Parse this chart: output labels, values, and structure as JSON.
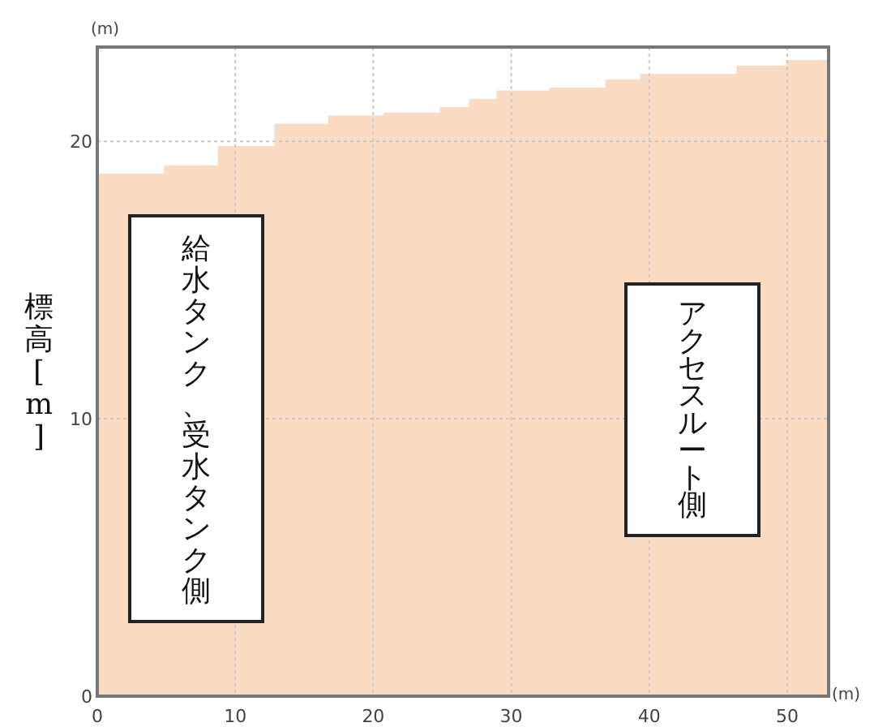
{
  "chart_data": {
    "type": "step",
    "xlabel": "(m)",
    "ylabel": "標高[m]",
    "x": [
      0,
      4.9,
      8.8,
      12.9,
      16.8,
      20.8,
      24.9,
      27.0,
      29.0,
      32.8,
      36.9,
      39.4,
      46.4,
      50.0,
      53
    ],
    "series": [
      {
        "color": "#fbdcc3",
        "values": [
          18.8,
          19.1,
          19.8,
          20.6,
          20.9,
          21.0,
          21.2,
          21.5,
          21.8,
          21.9,
          22.2,
          22.4,
          22.7,
          22.9,
          22.9
        ]
      }
    ],
    "xlim": [
      0,
      53
    ],
    "ylim": [
      0,
      23.4
    ],
    "xticks": [
      0,
      10,
      20,
      30,
      40,
      50
    ],
    "yticks": [
      0,
      10,
      20
    ],
    "grid": true,
    "annotations": [
      "(m)",
      "給水タンク、受水タンク側",
      "アクセスルート側"
    ]
  }
}
